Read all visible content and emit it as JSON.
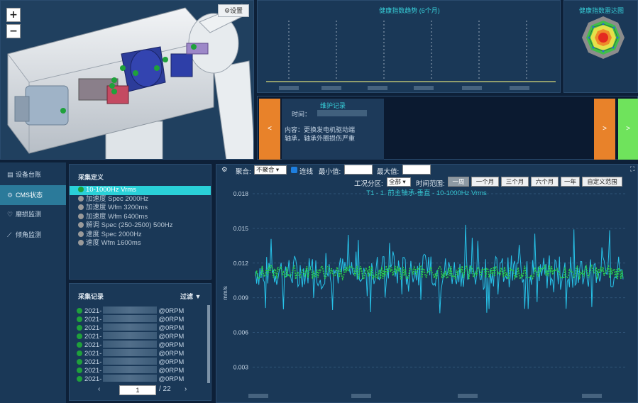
{
  "viewer": {
    "zoom_in": "+",
    "zoom_out": "−",
    "settings_label": "设置"
  },
  "trend": {
    "title": "健康指数趋势 (6个月)"
  },
  "radar": {
    "title": "健康指数雷达图"
  },
  "maintenance": {
    "title": "维护记录",
    "time_label": "时间：",
    "content_label": "内容：",
    "content_line1": "更换发电机驱动端",
    "content_line2": "轴承，轴承外圈损伤严重",
    "prev": "<",
    "next": ">",
    "next2": ">"
  },
  "sidebar": {
    "items": [
      {
        "label": "设备台账",
        "icon": "book-icon"
      },
      {
        "label": "CMS状态",
        "icon": "gear-icon"
      },
      {
        "label": "磨损监测",
        "icon": "heart-icon"
      },
      {
        "label": "倾角监测",
        "icon": "line-chart-icon"
      }
    ]
  },
  "definitions": {
    "title": "采集定义",
    "items": [
      {
        "label": "10-1000Hz Vrms",
        "dot": "#1fa13b",
        "selected": true
      },
      {
        "label": "加速度 Spec 2000Hz",
        "dot": "#9a9a9a"
      },
      {
        "label": "加速度 Wfm 3200ms",
        "dot": "#9a9a9a"
      },
      {
        "label": "加速度 Wfm 6400ms",
        "dot": "#9a9a9a"
      },
      {
        "label": "解调 Spec (250-2500) 500Hz",
        "dot": "#9a9a9a"
      },
      {
        "label": "速度 Spec 2000Hz",
        "dot": "#9a9a9a"
      },
      {
        "label": "速度 Wfm 1600ms",
        "dot": "#9a9a9a"
      }
    ]
  },
  "records": {
    "title": "采集记录",
    "filter_label": "过滤",
    "items": [
      {
        "prefix": "2021-",
        "suffix": "@0RPM"
      },
      {
        "prefix": "2021-",
        "suffix": "@0RPM"
      },
      {
        "prefix": "2021-",
        "suffix": "@0RPM"
      },
      {
        "prefix": "2021-",
        "suffix": "@0RPM"
      },
      {
        "prefix": "2021-",
        "suffix": "@0RPM"
      },
      {
        "prefix": "2021-",
        "suffix": "@0RPM"
      },
      {
        "prefix": "2021-",
        "suffix": "@0RPM"
      },
      {
        "prefix": "2021-",
        "suffix": "@0RPM"
      },
      {
        "prefix": "2021-",
        "suffix": "@0RPM"
      }
    ],
    "page": "1",
    "total": "/ 22",
    "prev": "‹",
    "next": "›"
  },
  "controls": {
    "aggregate_label": "聚合:",
    "aggregate_value": "不聚合",
    "connect_label": "连线",
    "min_label": "最小值:",
    "max_label": "最大值:",
    "condition_label": "工况分区:",
    "condition_value": "全部",
    "range_label": "时间范围:",
    "ranges": [
      {
        "label": "一周",
        "active": true
      },
      {
        "label": "一个月"
      },
      {
        "label": "三个月"
      },
      {
        "label": "六个月"
      },
      {
        "label": "一年"
      },
      {
        "label": "自定义范围"
      }
    ]
  },
  "chart_data": {
    "type": "line",
    "title": "T1 - 1. 前主轴承-垂直 - 10-1000Hz Vrms",
    "ylabel": "mm/s",
    "yticks": [
      "0.003",
      "0.006",
      "0.009",
      "0.012",
      "0.015",
      "0.018"
    ],
    "ylim": [
      0.001,
      0.018
    ],
    "grid": true,
    "series": [
      {
        "color": "#27c2e8",
        "mean": 0.0113,
        "spread": 0.0014,
        "spikes": 0.0035,
        "style": "line"
      },
      {
        "color": "#29cf4a",
        "mean": 0.0112,
        "spread": 0.0006,
        "style": "dash"
      }
    ]
  },
  "colors": {
    "accent": "#2ad0d8",
    "orange": "#e8822a",
    "green": "#6fe35c",
    "panel": "#1a3857"
  }
}
